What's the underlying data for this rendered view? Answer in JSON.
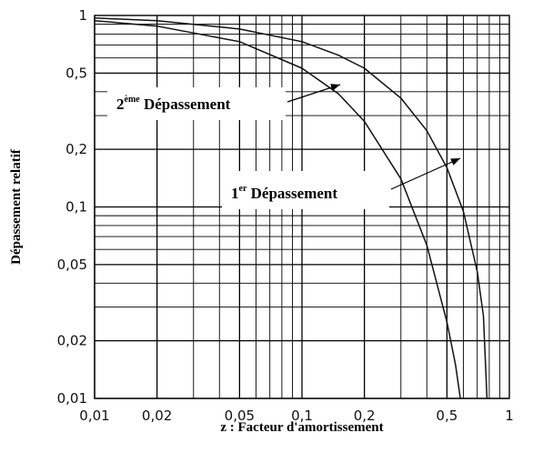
{
  "chart_data": {
    "type": "line",
    "title": "",
    "xlabel": "z : Facteur d'amortissement",
    "ylabel": "Dépassement relatif",
    "x_scale": "log",
    "y_scale": "log",
    "xlim": [
      0.01,
      1
    ],
    "ylim": [
      0.01,
      1
    ],
    "grid": true,
    "x_ticks": [
      {
        "value": 0.01,
        "label": "0,01"
      },
      {
        "value": 0.02,
        "label": "0,02"
      },
      {
        "value": 0.05,
        "label": "0,05"
      },
      {
        "value": 0.1,
        "label": "0,1"
      },
      {
        "value": 0.2,
        "label": "0,2"
      },
      {
        "value": 0.5,
        "label": "0,5"
      },
      {
        "value": 1,
        "label": "1"
      }
    ],
    "y_ticks": [
      {
        "value": 0.01,
        "label": "0,01"
      },
      {
        "value": 0.02,
        "label": "0,02"
      },
      {
        "value": 0.05,
        "label": "0,05"
      },
      {
        "value": 0.1,
        "label": "0,1"
      },
      {
        "value": 0.2,
        "label": "0,2"
      },
      {
        "value": 0.5,
        "label": "0,5"
      },
      {
        "value": 1,
        "label": "1"
      }
    ],
    "series": [
      {
        "name": "1er Dépassement",
        "name_main": "1",
        "name_sup": "er",
        "name_rest": " Dépassement",
        "x": [
          0.01,
          0.02,
          0.05,
          0.1,
          0.15,
          0.2,
          0.3,
          0.4,
          0.5,
          0.6,
          0.7,
          0.75,
          0.78
        ],
        "y": [
          0.97,
          0.94,
          0.85,
          0.73,
          0.62,
          0.53,
          0.37,
          0.25,
          0.16,
          0.095,
          0.046,
          0.027,
          0.01
        ]
      },
      {
        "name": "2ème Dépassement",
        "name_main": "2",
        "name_sup": "ème",
        "name_rest": " Dépassement",
        "x": [
          0.01,
          0.02,
          0.05,
          0.1,
          0.15,
          0.2,
          0.3,
          0.4,
          0.5,
          0.55,
          0.58
        ],
        "y": [
          0.94,
          0.88,
          0.73,
          0.53,
          0.39,
          0.28,
          0.14,
          0.063,
          0.025,
          0.015,
          0.01
        ]
      }
    ]
  },
  "colors": {
    "grid": "#000000",
    "line": "#111111",
    "background": "#ffffff"
  }
}
